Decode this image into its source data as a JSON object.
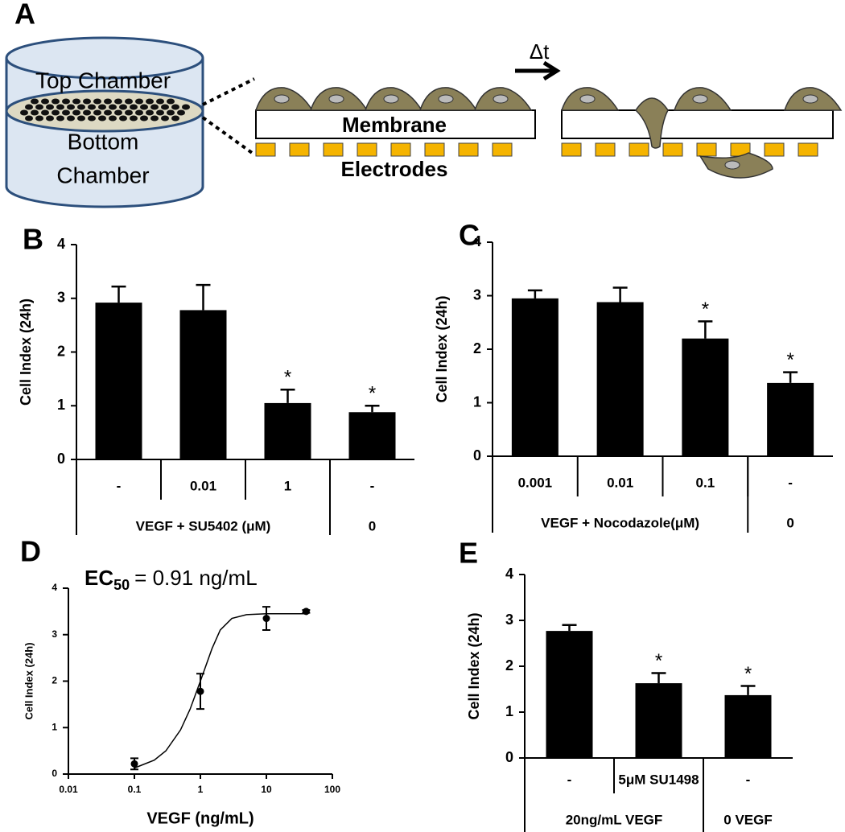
{
  "panel_a": {
    "label": "A",
    "top_chamber": "Top Chamber",
    "bottom_chamber_1": "Bottom",
    "bottom_chamber_2": "Chamber",
    "membrane": "Membrane",
    "electrodes": "Electrodes",
    "delta_t": "Δt"
  },
  "chart_data": [
    {
      "type": "bar",
      "panel_label": "B",
      "y_label": "Cell Index (24h)",
      "categories": [
        "-",
        "0.01",
        "1",
        "-"
      ],
      "values": [
        2.92,
        2.78,
        1.05,
        0.88
      ],
      "errors": [
        0.3,
        0.47,
        0.25,
        0.12
      ],
      "annotations": [
        null,
        null,
        "*",
        "*"
      ],
      "groups": [
        {
          "label": "VEGF + SU5402 (μM)",
          "span": 3
        },
        {
          "label": "0",
          "span": 1
        }
      ],
      "color": "#000000",
      "ylim": [
        0,
        4
      ],
      "yticks": [
        0,
        1,
        2,
        3,
        4
      ]
    },
    {
      "type": "bar",
      "panel_label": "C",
      "y_label": "Cell Index (24h)",
      "categories": [
        "0.001",
        "0.01",
        "0.1",
        "-"
      ],
      "values": [
        2.95,
        2.88,
        2.2,
        1.37
      ],
      "errors": [
        0.15,
        0.27,
        0.32,
        0.2
      ],
      "annotations": [
        null,
        null,
        "*",
        "*"
      ],
      "groups": [
        {
          "label": "VEGF + Nocodazole(μM)",
          "span": 3
        },
        {
          "label": "0",
          "span": 1
        }
      ],
      "color": "#000000",
      "ylim": [
        0,
        4
      ],
      "yticks": [
        0,
        1,
        2,
        3,
        4
      ]
    },
    {
      "type": "scatter",
      "panel_label": "D",
      "title_main": "EC",
      "title_sub": "50",
      "title_rest": "= 0.91 ng/mL",
      "x_label": "VEGF (ng/mL)",
      "y_label": "Cell  Index (24h)",
      "x": [
        0.1,
        1,
        10,
        40
      ],
      "values": [
        0.22,
        1.78,
        3.35,
        3.5
      ],
      "errors": [
        0.12,
        0.38,
        0.25,
        0.03
      ],
      "fit": {
        "x": [
          0.1,
          0.2,
          0.3,
          0.5,
          0.7,
          1,
          1.5,
          2,
          3,
          5,
          10,
          40
        ],
        "y": [
          0.13,
          0.3,
          0.5,
          0.95,
          1.4,
          2.0,
          2.7,
          3.1,
          3.35,
          3.43,
          3.45,
          3.45
        ]
      },
      "x_log": true,
      "color": "#000000",
      "xlim": [
        0.01,
        100
      ],
      "xticks": [
        0.01,
        0.1,
        1,
        10,
        100
      ],
      "ylim": [
        0,
        4
      ],
      "yticks": [
        0,
        1,
        2,
        3,
        4
      ]
    },
    {
      "type": "bar",
      "panel_label": "E",
      "y_label": "Cell Index (24h)",
      "categories": [
        "-",
        "5μM SU1498",
        "-"
      ],
      "values": [
        2.77,
        1.63,
        1.37
      ],
      "errors": [
        0.13,
        0.22,
        0.2
      ],
      "annotations": [
        null,
        "*",
        "*"
      ],
      "groups": [
        {
          "label": "20ng/mL VEGF",
          "span": 2
        },
        {
          "label": "0 VEGF",
          "span": 1
        }
      ],
      "color": "#000000",
      "ylim": [
        0,
        4
      ],
      "yticks": [
        0,
        1,
        2,
        3,
        4
      ]
    }
  ]
}
